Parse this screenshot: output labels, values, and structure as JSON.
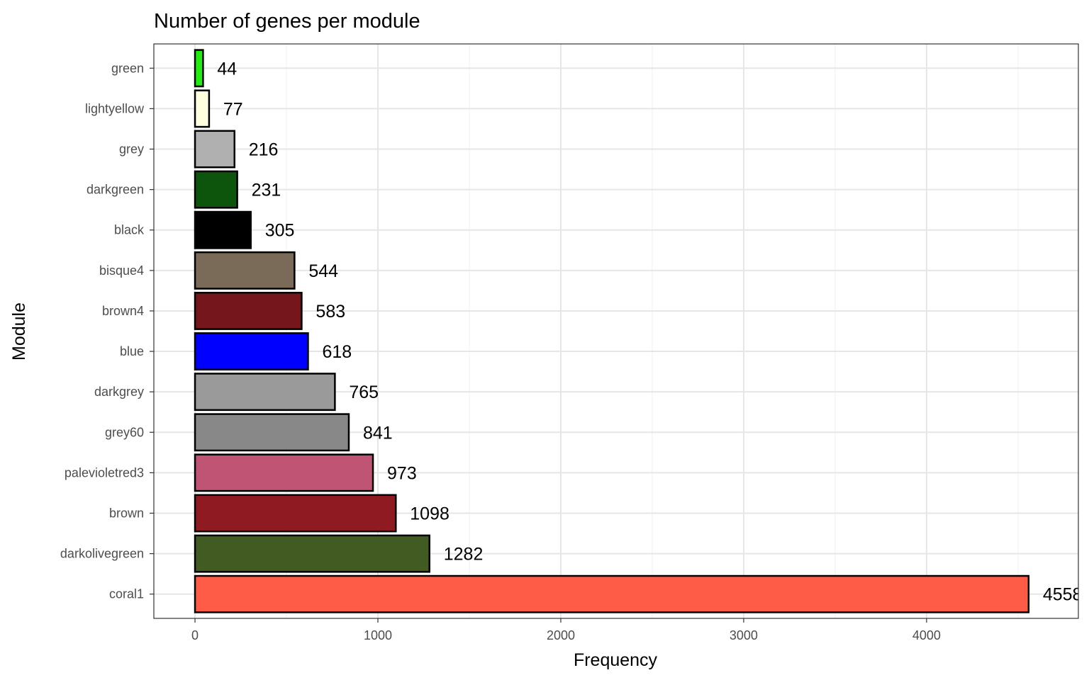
{
  "chart_data": {
    "type": "bar",
    "orientation": "horizontal",
    "title": "Number of genes per module",
    "xlabel": "Frequency",
    "ylabel": "Module",
    "categories": [
      "green",
      "lightyellow",
      "grey",
      "darkgreen",
      "black",
      "bisque4",
      "brown4",
      "blue",
      "darkgrey",
      "grey60",
      "palevioletred3",
      "brown",
      "darkolivegreen",
      "coral1"
    ],
    "values": [
      44,
      77,
      216,
      231,
      305,
      544,
      583,
      618,
      765,
      841,
      973,
      1098,
      1282,
      4558
    ],
    "colors": [
      "#22ee11",
      "#ffffe0",
      "#b0b0b0",
      "#0d540d",
      "#000000",
      "#7a6a58",
      "#74161c",
      "#0000ff",
      "#9a9a9a",
      "#888888",
      "#c05475",
      "#8f1a22",
      "#425b22",
      "#ff5c47"
    ],
    "xticks": [
      0,
      1000,
      2000,
      3000,
      4000
    ],
    "xlim": [
      -225,
      4830
    ],
    "grid": true,
    "theme": "bw",
    "data_labels": true
  }
}
